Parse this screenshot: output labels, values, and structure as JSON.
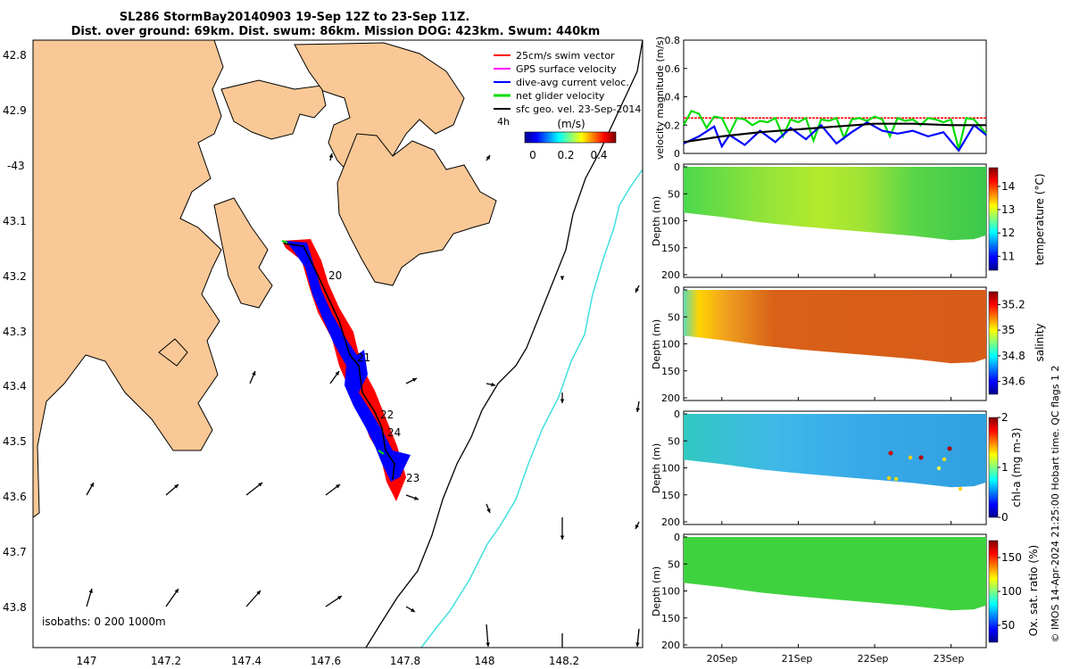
{
  "title": {
    "line1": "SL286 StormBay20140903 19-Sep 12Z to 23-Sep 11Z.",
    "line2": "Dist. over ground: 69km. Dist. swum: 86km. Mission DOG: 423km. Swum: 440km"
  },
  "map": {
    "lat_ticks": [
      "42.8",
      "42.9",
      "-43",
      "43.1",
      "43.2",
      "43.3",
      "43.4",
      "43.5",
      "43.6",
      "43.7",
      "43.8"
    ],
    "lon_ticks": [
      "147",
      "147.2",
      "147.4",
      "147.6",
      "147.8",
      "148",
      "148.2"
    ],
    "legend": [
      {
        "label": "25cm/s swim vector",
        "color": "#ff0000"
      },
      {
        "label": "GPS surface velocity",
        "color": "#ff00ff"
      },
      {
        "label": "dive-avg current veloc.",
        "color": "#0000ff"
      },
      {
        "label": "net glider velocity",
        "color": "#00dd00"
      },
      {
        "label": "sfc geo. vel. 23-Sep-2014",
        "color": "#000000"
      }
    ],
    "hours_label": "4h",
    "colorbar": {
      "label": "(m/s)",
      "ticks": [
        "0",
        "0.2",
        "0.4"
      ]
    },
    "day_labels": [
      "20",
      "21",
      "22",
      "24",
      "23"
    ],
    "isobaths_label": "isobaths: 0   200  1000m",
    "land_color": "#f9c896",
    "track_color": "#ff0000",
    "current_color": "#0000ff",
    "isobath_200_color": "#000000",
    "isobath_1000_color": "#40e0e0"
  },
  "chart_data": [
    {
      "type": "line",
      "ylabel": "velocity magnitude (m/s)",
      "ylim": [
        0,
        0.8
      ],
      "yticks": [
        "0",
        "0.2",
        "0.4",
        "0.6",
        "0.8"
      ],
      "x_days": [
        19.5,
        23.46
      ],
      "series": [
        {
          "color": "#ff0000",
          "x": [
            19.5,
            23.46
          ],
          "values": [
            0.25,
            0.25
          ]
        },
        {
          "color": "#00dd00",
          "x": [
            19.5,
            19.6,
            19.7,
            19.8,
            19.9,
            20.0,
            20.1,
            20.2,
            20.3,
            20.4,
            20.5,
            20.6,
            20.7,
            20.8,
            20.9,
            21.0,
            21.1,
            21.2,
            21.3,
            21.4,
            21.5,
            21.6,
            21.7,
            21.8,
            21.9,
            22.0,
            22.1,
            22.2,
            22.3,
            22.4,
            22.5,
            22.6,
            22.7,
            22.8,
            22.9,
            23.0,
            23.1,
            23.2,
            23.3,
            23.46
          ],
          "values": [
            0.2,
            0.3,
            0.28,
            0.18,
            0.26,
            0.25,
            0.14,
            0.25,
            0.24,
            0.2,
            0.23,
            0.22,
            0.25,
            0.12,
            0.24,
            0.22,
            0.25,
            0.09,
            0.24,
            0.23,
            0.25,
            0.11,
            0.24,
            0.25,
            0.23,
            0.26,
            0.24,
            0.12,
            0.25,
            0.23,
            0.24,
            0.2,
            0.25,
            0.24,
            0.22,
            0.24,
            0.03,
            0.25,
            0.24,
            0.14
          ]
        },
        {
          "color": "#0000ff",
          "x": [
            19.5,
            19.7,
            19.9,
            20.0,
            20.1,
            20.3,
            20.5,
            20.7,
            20.9,
            21.1,
            21.3,
            21.5,
            21.7,
            21.9,
            22.1,
            22.3,
            22.5,
            22.7,
            22.9,
            23.1,
            23.3,
            23.46
          ],
          "values": [
            0.07,
            0.12,
            0.19,
            0.05,
            0.13,
            0.06,
            0.16,
            0.08,
            0.18,
            0.1,
            0.2,
            0.07,
            0.15,
            0.22,
            0.16,
            0.14,
            0.16,
            0.12,
            0.15,
            0.02,
            0.2,
            0.13
          ]
        },
        {
          "color": "#000000",
          "x": [
            19.5,
            20.0,
            20.5,
            21.0,
            21.5,
            22.0,
            22.5,
            23.0,
            23.46
          ],
          "values": [
            0.08,
            0.12,
            0.15,
            0.17,
            0.19,
            0.21,
            0.21,
            0.2,
            0.2
          ]
        }
      ]
    },
    {
      "type": "heatmap",
      "variable": "temperature",
      "ylabel": "Depth (m)",
      "colorbar_label": "temperature (°C)",
      "colorbar_ticks": [
        "11",
        "12",
        "13",
        "14"
      ],
      "clim": [
        10.4,
        14.8
      ],
      "ylim": [
        0,
        200
      ],
      "yticks": [
        "0",
        "50",
        "100",
        "150",
        "200"
      ],
      "value_range": [
        12.2,
        13.2
      ]
    },
    {
      "type": "heatmap",
      "variable": "salinity",
      "ylabel": "Depth (m)",
      "colorbar_label": "salinity",
      "colorbar_ticks": [
        "34.6",
        "34.8",
        "35",
        "35.2"
      ],
      "clim": [
        34.5,
        35.3
      ],
      "ylim": [
        0,
        200
      ],
      "yticks": [
        "0",
        "50",
        "100",
        "150",
        "200"
      ],
      "value_range": [
        35.0,
        35.3
      ]
    },
    {
      "type": "heatmap",
      "variable": "chl-a",
      "ylabel": "Depth (m)",
      "colorbar_label": "chl-a (mg m-3)",
      "colorbar_ticks": [
        "0",
        "1",
        "2"
      ],
      "clim": [
        0,
        2
      ],
      "ylim": [
        0,
        200
      ],
      "yticks": [
        "0",
        "50",
        "100",
        "150",
        "200"
      ],
      "value_range": [
        0.4,
        1.0
      ]
    },
    {
      "type": "heatmap",
      "variable": "oxygen",
      "ylabel": "Depth (m)",
      "colorbar_label": "Ox. sat. ratio (%)",
      "colorbar_ticks": [
        "50",
        "100",
        "150"
      ],
      "clim": [
        25,
        175
      ],
      "ylim": [
        0,
        200
      ],
      "yticks": [
        "0",
        "50",
        "100",
        "150",
        "200"
      ],
      "value_range": [
        95,
        105
      ]
    }
  ],
  "time_axis": {
    "ticks": [
      "20Sep",
      "21Sep",
      "22Sep",
      "23Sep"
    ],
    "tick_days": [
      20,
      21,
      22,
      23
    ]
  },
  "bottom_depth": {
    "days": [
      19.5,
      20.0,
      20.5,
      21.0,
      21.5,
      22.0,
      22.5,
      23.0,
      23.3,
      23.46
    ],
    "depths": [
      85,
      93,
      103,
      110,
      116,
      122,
      128,
      136,
      134,
      127
    ]
  },
  "footer_text": "© IMOS 14-Apr-2024 21:25:00 Hobart time. QC flags 1  2"
}
